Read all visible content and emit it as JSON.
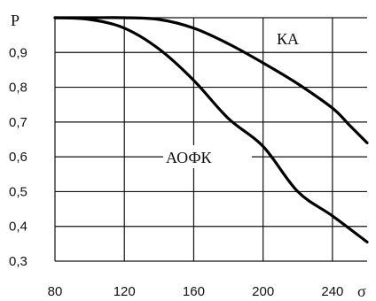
{
  "chart_data": {
    "type": "line",
    "xlabel": "σ",
    "ylabel": "P",
    "xlim": [
      80,
      260
    ],
    "ylim": [
      0.3,
      1.0
    ],
    "x_ticks": [
      "80",
      "120",
      "160",
      "200",
      "240"
    ],
    "y_ticks": [
      "0,3",
      "0,4",
      "0,5",
      "0,6",
      "0,7",
      "0,8",
      "0,9"
    ],
    "grid": true,
    "series": [
      {
        "name": "КА",
        "x": [
          80,
          100,
          120,
          140,
          160,
          180,
          200,
          220,
          240,
          250,
          260
        ],
        "y": [
          1.0,
          1.0,
          1.0,
          0.995,
          0.97,
          0.925,
          0.87,
          0.81,
          0.74,
          0.69,
          0.64
        ]
      },
      {
        "name": "АОФК",
        "x": [
          80,
          100,
          120,
          140,
          160,
          180,
          200,
          220,
          240,
          260
        ],
        "y": [
          1.0,
          0.995,
          0.97,
          0.91,
          0.82,
          0.71,
          0.63,
          0.5,
          0.43,
          0.355
        ]
      }
    ]
  }
}
